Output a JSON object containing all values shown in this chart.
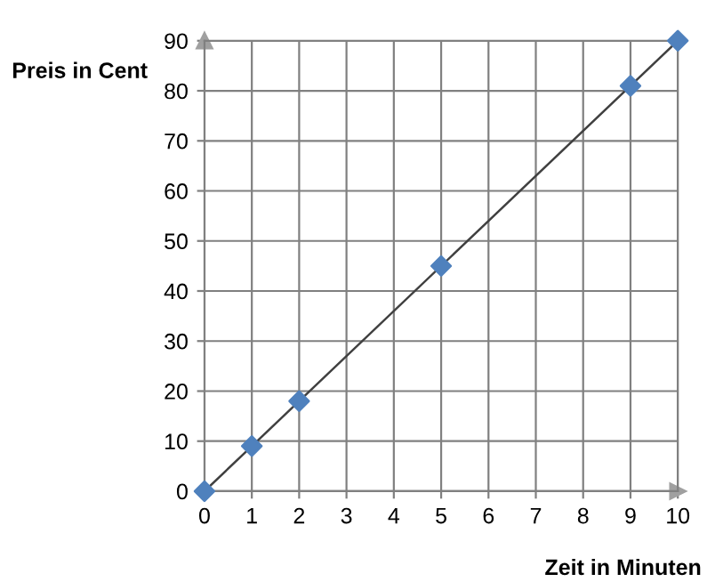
{
  "chart_data": {
    "type": "scatter",
    "xlabel": "Zeit in Minuten",
    "ylabel": "Preis in Cent",
    "series": [
      {
        "type": "line",
        "color": "#404040",
        "x": [
          0,
          10
        ],
        "values": [
          0,
          90
        ],
        "marker": "none",
        "line_style": "solid"
      },
      {
        "color": "#4f81bd",
        "x": [
          0,
          1,
          2,
          5,
          9,
          10
        ],
        "values": [
          0,
          9,
          18,
          45,
          81,
          90
        ],
        "marker": "diamond"
      }
    ],
    "xlim": [
      0,
      10
    ],
    "xticks": [
      0,
      1,
      2,
      3,
      4,
      5,
      6,
      7,
      8,
      9,
      10
    ],
    "ylim": [
      0,
      90
    ],
    "yticks": [
      0,
      10,
      20,
      30,
      40,
      50,
      60,
      70,
      80,
      90
    ],
    "grid": true,
    "legend": false
  }
}
